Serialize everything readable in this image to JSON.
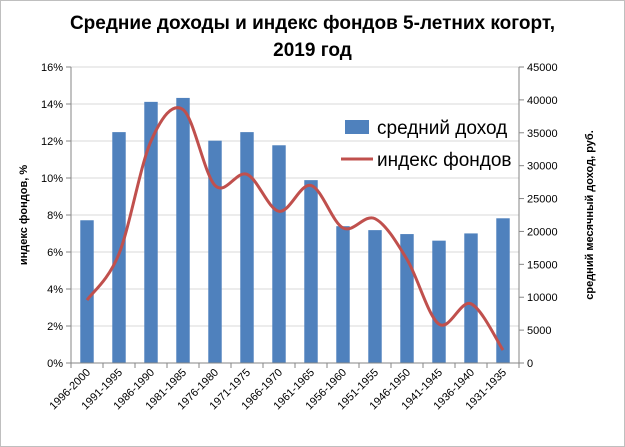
{
  "chart_data": {
    "type": "bar+line",
    "title_line1": "Средние доходы и индекс фондов  5-летних когорт,",
    "title_line2": "2019 год",
    "categories": [
      "1996-2000",
      "1991-1995",
      "1986-1990",
      "1981-1985",
      "1976-1980",
      "1971-1975",
      "1966-1970",
      "1961-1965",
      "1956-1960",
      "1951-1955",
      "1946-1950",
      "1941-1945",
      "1936-1940",
      "1931-1935"
    ],
    "series": [
      {
        "name": "средний доход",
        "kind": "bar",
        "axis": "right",
        "color": "#4f81bd",
        "values": [
          21700,
          35100,
          39700,
          40300,
          33800,
          35100,
          33100,
          27800,
          20800,
          20200,
          19600,
          18600,
          19700,
          22000
        ]
      },
      {
        "name": "индекс фондов",
        "kind": "line",
        "axis": "left",
        "color": "#c0504d",
        "values": [
          3.4,
          5.9,
          12.0,
          13.7,
          9.6,
          10.2,
          8.2,
          9.6,
          7.3,
          7.8,
          5.6,
          2.1,
          3.2,
          0.7
        ]
      }
    ],
    "left_axis": {
      "label": "индекс фондов, %",
      "min": 0,
      "max": 16,
      "step": 2,
      "ticks": [
        "0%",
        "2%",
        "4%",
        "6%",
        "8%",
        "10%",
        "12%",
        "14%",
        "16%"
      ]
    },
    "right_axis": {
      "label": "средний месячный доход, руб.",
      "min": 0,
      "max": 45000,
      "step": 5000,
      "ticks": [
        "0",
        "5000",
        "10000",
        "15000",
        "20000",
        "25000",
        "30000",
        "35000",
        "40000",
        "45000"
      ]
    },
    "grid": true,
    "legend_position": "top-right"
  }
}
